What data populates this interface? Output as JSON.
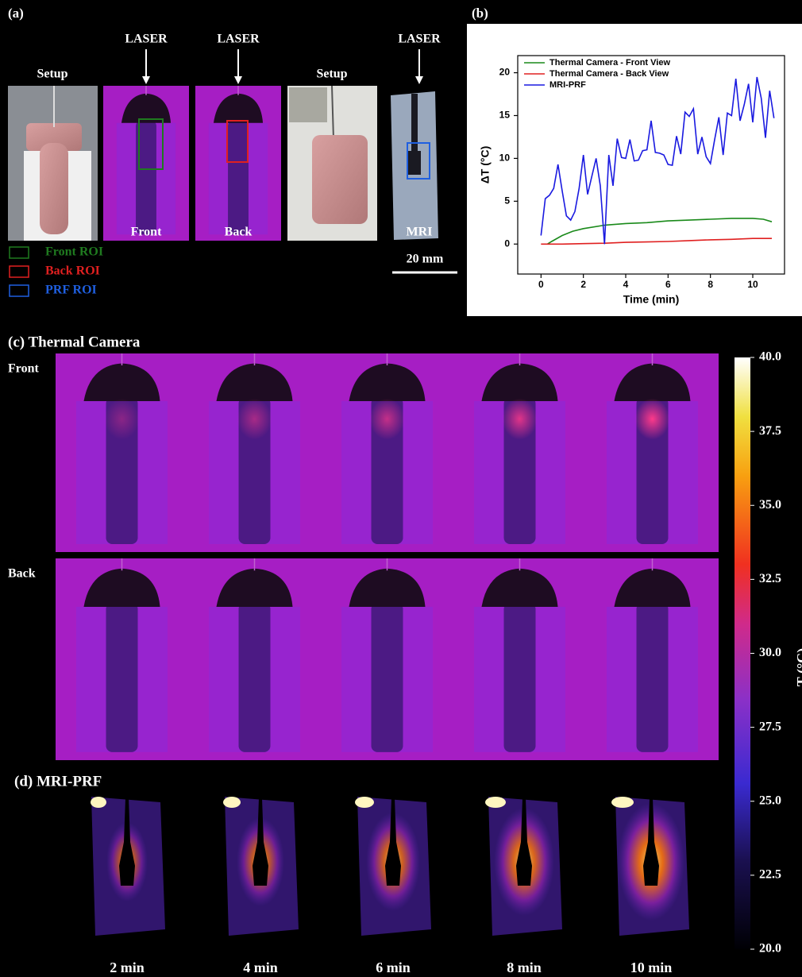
{
  "panel_a": {
    "label": "(a)",
    "images": [
      {
        "title": "Setup"
      },
      {
        "top": "LASER",
        "bottom": "Front"
      },
      {
        "top": "LASER",
        "bottom": "Back"
      },
      {
        "title": "Setup"
      },
      {
        "top": "LASER",
        "bottom": "MRI"
      }
    ],
    "legend": [
      {
        "name": "Front ROI",
        "color": "#1f7a1f"
      },
      {
        "name": "Back ROI",
        "color": "#e02020"
      },
      {
        "name": "PRF ROI",
        "color": "#1f5fe0"
      }
    ],
    "scale_bar": "20 mm"
  },
  "chart_data": {
    "type": "line",
    "label": "(b)",
    "x_label": "Time (min)",
    "y_label": "ΔT (°C)",
    "xlim": [
      -1.1,
      11.5
    ],
    "ylim": [
      -3.5,
      22
    ],
    "xticks": [
      0,
      2,
      4,
      6,
      8,
      10
    ],
    "yticks": [
      0,
      5,
      10,
      15,
      20
    ],
    "legend": "upper left",
    "series": [
      {
        "name": "Thermal Camera - Front View",
        "color": "#1a8a1a",
        "x": [
          0.3,
          0.5,
          1,
          1.5,
          2,
          3,
          4,
          5,
          6,
          7,
          8,
          9,
          10,
          10.5,
          10.9
        ],
        "values": [
          0,
          0.3,
          1.0,
          1.5,
          1.8,
          2.2,
          2.4,
          2.5,
          2.7,
          2.8,
          2.9,
          3.0,
          3.0,
          2.9,
          2.6
        ]
      },
      {
        "name": "Thermal Camera - Back View",
        "color": "#e02020",
        "x": [
          0,
          1,
          2,
          3,
          4,
          5,
          6,
          7,
          8,
          9,
          10,
          10.9
        ],
        "values": [
          0,
          0,
          0.05,
          0.1,
          0.2,
          0.25,
          0.3,
          0.4,
          0.5,
          0.55,
          0.65,
          0.65
        ]
      },
      {
        "name": "MRI-PRF",
        "color": "#1a1ae0",
        "x": [
          0,
          0.2,
          0.4,
          0.6,
          0.8,
          1.0,
          1.2,
          1.4,
          1.6,
          1.8,
          2.0,
          2.2,
          2.4,
          2.6,
          2.8,
          3.0,
          3.2,
          3.4,
          3.6,
          3.8,
          4.0,
          4.2,
          4.4,
          4.6,
          4.8,
          5.0,
          5.2,
          5.4,
          5.6,
          5.8,
          6.0,
          6.2,
          6.4,
          6.6,
          6.8,
          7.0,
          7.2,
          7.4,
          7.6,
          7.8,
          8.0,
          8.2,
          8.4,
          8.6,
          8.8,
          9.0,
          9.2,
          9.4,
          9.6,
          9.8,
          10.0,
          10.2,
          10.4,
          10.6,
          10.8,
          11.0
        ],
        "values": [
          1,
          5.3,
          5.7,
          6.5,
          9.3,
          6.2,
          3.3,
          2.8,
          3.8,
          6.5,
          10.4,
          5.8,
          7.9,
          10.0,
          6.8,
          0,
          10.4,
          6.8,
          12.3,
          10.1,
          10.0,
          12.2,
          9.7,
          9.8,
          10.9,
          11.0,
          14.4,
          10.7,
          10.6,
          10.4,
          9.3,
          9.2,
          12.6,
          10.5,
          15.4,
          14.9,
          15.8,
          10.5,
          12.5,
          10.2,
          9.4,
          12.2,
          14.8,
          10.4,
          15.3,
          15.0,
          19.3,
          14.4,
          16.3,
          18.7,
          14.2,
          19.5,
          17.0,
          12.4,
          17.9,
          14.7
        ]
      }
    ]
  },
  "panel_c": {
    "label": "(c) Thermal Camera",
    "rows": [
      "Front",
      "Back"
    ]
  },
  "panel_d": {
    "label": "(d) MRI-PRF",
    "times": [
      "2 min",
      "4 min",
      "6 min",
      "8 min",
      "10 min"
    ]
  },
  "colorbar": {
    "label": "T (°C)",
    "lim": [
      20,
      40
    ],
    "ticks": [
      {
        "value": 40,
        "label": "40.0"
      },
      {
        "value": 37.5,
        "label": "37.5"
      },
      {
        "value": 35,
        "label": "35.0"
      },
      {
        "value": 32.5,
        "label": "32.5"
      },
      {
        "value": 30,
        "label": "30.0"
      },
      {
        "value": 27.5,
        "label": "27.5"
      },
      {
        "value": 25,
        "label": "25.0"
      },
      {
        "value": 22.5,
        "label": "22.5"
      },
      {
        "value": 20,
        "label": "20.0"
      }
    ]
  }
}
